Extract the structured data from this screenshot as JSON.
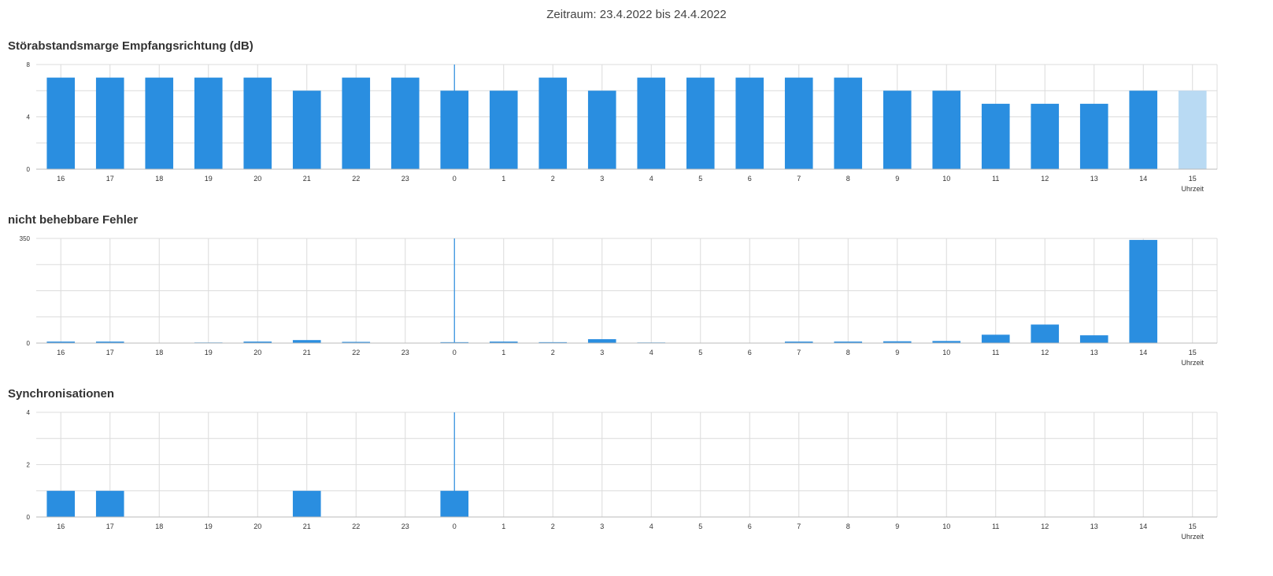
{
  "header": {
    "period_label": "Zeitraum: 23.4.2022 bis 24.4.2022"
  },
  "colors": {
    "bar": "#2a8ee0",
    "bar_partial": "#b9daf3",
    "grid": "#dcdcdc",
    "marker": "#2a8ee0"
  },
  "chart_data": [
    {
      "type": "bar",
      "title": "Störabstandsmarge Empfangsrichtung (dB)",
      "xlabel": "Uhrzeit",
      "ylabel": "",
      "categories": [
        "16",
        "17",
        "18",
        "19",
        "20",
        "21",
        "22",
        "23",
        "0",
        "1",
        "2",
        "3",
        "4",
        "5",
        "6",
        "7",
        "8",
        "9",
        "10",
        "11",
        "12",
        "13",
        "14",
        "15"
      ],
      "values": [
        7,
        7,
        7,
        7,
        7,
        6,
        7,
        7,
        6,
        6,
        7,
        6,
        7,
        7,
        7,
        7,
        7,
        6,
        6,
        5,
        5,
        5,
        6,
        6
      ],
      "partial_categories": [
        "15"
      ],
      "ylim": [
        0,
        8
      ],
      "yticks": [
        0,
        4,
        8
      ],
      "day_marker_at": "0",
      "grid": true
    },
    {
      "type": "bar",
      "title": "nicht behebbare Fehler",
      "xlabel": "Uhrzeit",
      "ylabel": "",
      "categories": [
        "16",
        "17",
        "18",
        "19",
        "20",
        "21",
        "22",
        "23",
        "0",
        "1",
        "2",
        "3",
        "4",
        "5",
        "6",
        "7",
        "8",
        "9",
        "10",
        "11",
        "12",
        "13",
        "14",
        "15"
      ],
      "values": [
        5,
        5,
        1,
        2,
        5,
        10,
        4,
        1,
        3,
        5,
        3,
        13,
        2,
        1,
        1,
        5,
        5,
        6,
        7,
        28,
        62,
        26,
        345,
        0
      ],
      "partial_categories": [],
      "ylim": [
        0,
        350
      ],
      "yticks": [
        0,
        350
      ],
      "day_marker_at": "0",
      "grid": true
    },
    {
      "type": "bar",
      "title": "Synchronisationen",
      "xlabel": "Uhrzeit",
      "ylabel": "",
      "categories": [
        "16",
        "17",
        "18",
        "19",
        "20",
        "21",
        "22",
        "23",
        "0",
        "1",
        "2",
        "3",
        "4",
        "5",
        "6",
        "7",
        "8",
        "9",
        "10",
        "11",
        "12",
        "13",
        "14",
        "15"
      ],
      "values": [
        1,
        1,
        0,
        0,
        0,
        1,
        0,
        0,
        1,
        0,
        0,
        0,
        0,
        0,
        0,
        0,
        0,
        0,
        0,
        0,
        0,
        0,
        0,
        0
      ],
      "partial_categories": [],
      "ylim": [
        0,
        4
      ],
      "yticks": [
        0,
        2,
        4
      ],
      "day_marker_at": "0",
      "grid": true
    }
  ]
}
